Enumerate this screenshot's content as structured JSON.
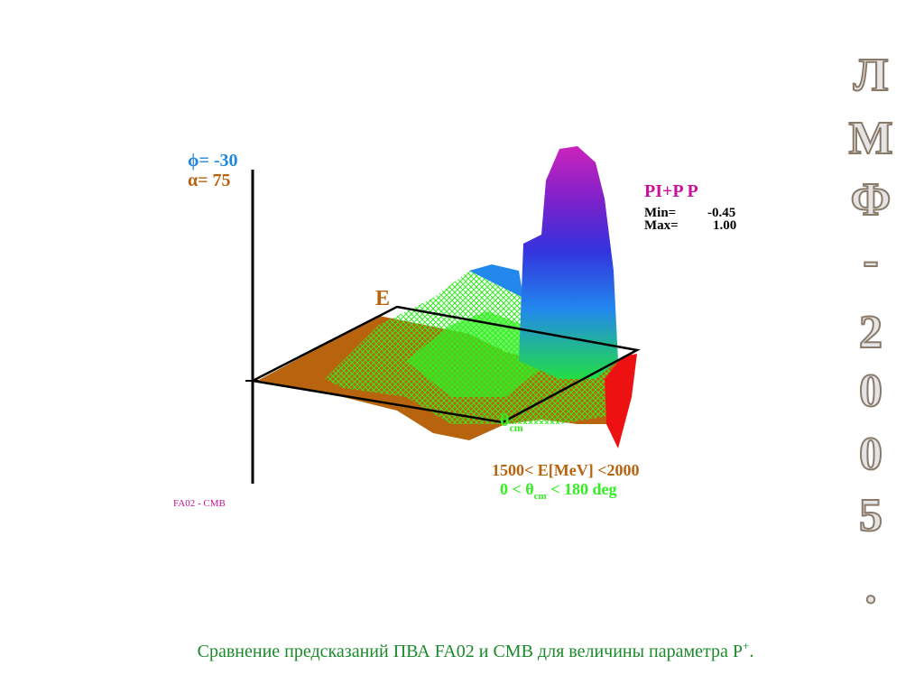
{
  "plot": {
    "view": {
      "phi": "ϕ= -30",
      "alpha": "α= 75"
    },
    "axis_label_e": "E",
    "axis_label_theta": {
      "main": "θ",
      "sub": "cm"
    },
    "quantity": "PI+P P",
    "min": {
      "label": "Min=",
      "value": "-0.45"
    },
    "max": {
      "label": "Max=",
      "value": "1.00"
    },
    "range_energy": "1500< E[MeV] <2000",
    "range_angle": {
      "before": "0 < θ",
      "sub": "cm",
      "after": " < 180 deg"
    },
    "source": "FA02 - CMB"
  },
  "side_title": [
    "Л",
    "М",
    "Ф",
    "-",
    "2",
    "0",
    "0",
    "5",
    "."
  ],
  "caption": {
    "text": "Сравнение предсказаний ПВА FA02 и СМВ  для величины параметра Р",
    "sup": "+",
    "end": "."
  }
}
